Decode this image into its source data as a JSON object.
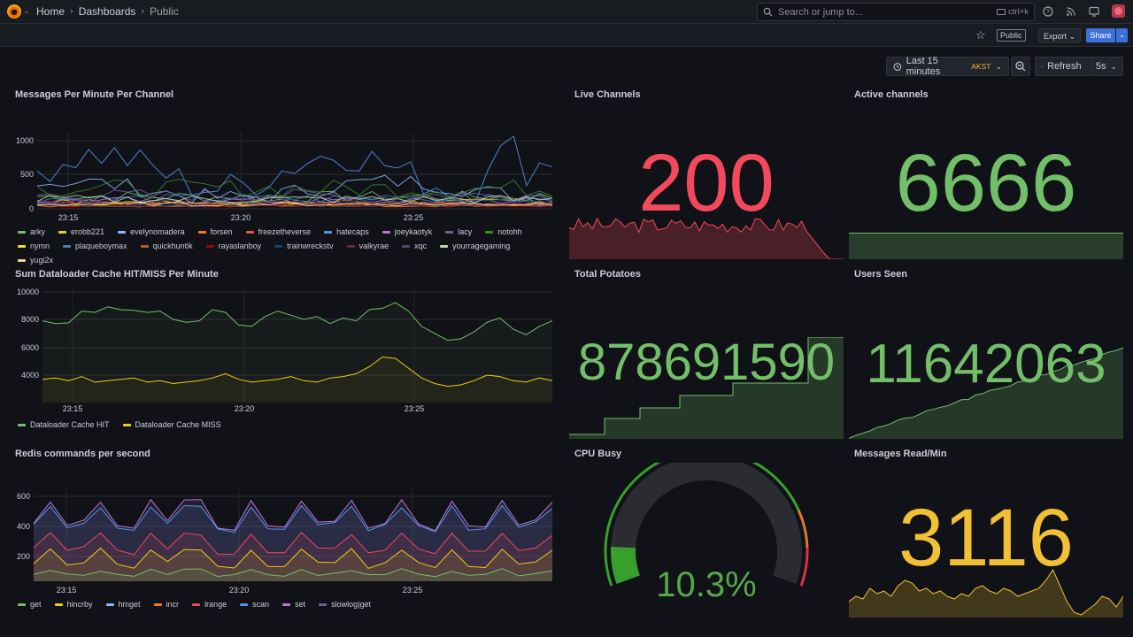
{
  "breadcrumb": {
    "home": "Home",
    "dashboards": "Dashboards",
    "current": "Public"
  },
  "search": {
    "placeholder": "Search or jump to...",
    "shortcut": "ctrl+k"
  },
  "toolbar": {
    "public_badge": "Public",
    "export_label": "Export",
    "share_label": "Share"
  },
  "time": {
    "range_label": "Last 15 minutes",
    "timezone": "AKST",
    "refresh_label": "Refresh",
    "refresh_interval": "5s"
  },
  "colors": {
    "green": "#73bf69",
    "red": "#f2495c",
    "yellow": "#f2cc0c",
    "blue": "#5794f2",
    "orange": "#ff9830",
    "purple": "#b877d9"
  },
  "panels": {
    "messages": {
      "title": "Messages Per Minute Per Channel",
      "y_ticks": [
        "1000",
        "500",
        "0"
      ],
      "x_ticks": [
        "23:15",
        "23:20",
        "23:25"
      ],
      "legend": [
        {
          "name": "arky",
          "color": "#73bf69"
        },
        {
          "name": "erobb221",
          "color": "#f2cc0c"
        },
        {
          "name": "evelynomadera",
          "color": "#8ab8ff"
        },
        {
          "name": "forsen",
          "color": "#ff780a"
        },
        {
          "name": "freezetheverse",
          "color": "#f2495c"
        },
        {
          "name": "hatecaps",
          "color": "#5794f2"
        },
        {
          "name": "joeykaotyk",
          "color": "#b877d9"
        },
        {
          "name": "lacy",
          "color": "#705da0"
        },
        {
          "name": "notohh",
          "color": "#37872d"
        },
        {
          "name": "nymn",
          "color": "#fade2a"
        },
        {
          "name": "plaqueboymax",
          "color": "#447ebc"
        },
        {
          "name": "quickhuntik",
          "color": "#c15c17"
        },
        {
          "name": "rayaslanboy",
          "color": "#890f02"
        },
        {
          "name": "trainwreckstv",
          "color": "#0a437c"
        },
        {
          "name": "valkyrae",
          "color": "#6d1f62"
        },
        {
          "name": "xqc",
          "color": "#584477"
        },
        {
          "name": "yourragegaming",
          "color": "#b7dbab"
        },
        {
          "name": "yugi2x",
          "color": "#f4d598"
        }
      ]
    },
    "dataloader": {
      "title": "Sum Dataloader Cache HIT/MISS Per Minute",
      "y_ticks": [
        "10000",
        "8000",
        "6000",
        "4000"
      ],
      "x_ticks": [
        "23:15",
        "23:20",
        "23:25"
      ],
      "legend": [
        {
          "name": "Dataloader Cache HIT",
          "color": "#73bf69"
        },
        {
          "name": "Dataloader Cache MISS",
          "color": "#f2cc0c"
        }
      ]
    },
    "redis": {
      "title": "Redis commands per second",
      "y_ticks": [
        "600",
        "400",
        "200"
      ],
      "x_ticks": [
        "23:15",
        "23:20",
        "23:25"
      ],
      "legend": [
        {
          "name": "get",
          "color": "#73bf69"
        },
        {
          "name": "hincrby",
          "color": "#f2cc0c"
        },
        {
          "name": "hmget",
          "color": "#8ab8ff"
        },
        {
          "name": "incr",
          "color": "#ff780a"
        },
        {
          "name": "lrange",
          "color": "#f2495c"
        },
        {
          "name": "scan",
          "color": "#5794f2"
        },
        {
          "name": "set",
          "color": "#b877d9"
        },
        {
          "name": "slowlog|get",
          "color": "#705da0"
        }
      ]
    },
    "live_channels": {
      "title": "Live Channels",
      "value": "200"
    },
    "active_channels": {
      "title": "Active channels",
      "value": "6666"
    },
    "total_potatoes": {
      "title": "Total Potatoes",
      "value": "878691590"
    },
    "users_seen": {
      "title": "Users Seen",
      "value": "11642063"
    },
    "cpu_busy": {
      "title": "CPU Busy",
      "value": "10.3%",
      "percent": 10.3
    },
    "messages_read": {
      "title": "Messages Read/Min",
      "value": "3116"
    }
  }
}
